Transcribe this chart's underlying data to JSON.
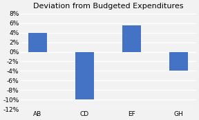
{
  "title": "Deviation from Budgeted Expenditures",
  "categories": [
    "AB",
    "CD",
    "EF",
    "GH"
  ],
  "values": [
    0.04,
    -0.1,
    0.055,
    -0.04
  ],
  "bar_color": "#4472C4",
  "ylim": [
    -0.12,
    0.085
  ],
  "yticks": [
    -0.12,
    -0.1,
    -0.08,
    -0.06,
    -0.04,
    -0.02,
    0.0,
    0.02,
    0.04,
    0.06,
    0.08
  ],
  "background_color": "#F2F2F2",
  "plot_bg_color": "#F2F2F2",
  "grid_color": "#FFFFFF",
  "title_fontsize": 8,
  "tick_fontsize": 6.5,
  "bar_width": 0.4
}
